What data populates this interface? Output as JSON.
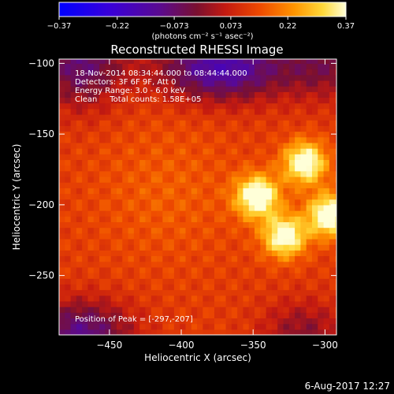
{
  "chart_data": {
    "type": "heatmap",
    "title": "Reconstructed RHESSI Image",
    "xlabel": "Heliocentric X (arcsec)",
    "ylabel": "Heliocentric Y (arcsec)",
    "xlim": [
      -485,
      -292
    ],
    "ylim": [
      -292,
      -97
    ],
    "x_ticks": [
      -450,
      -400,
      -350,
      -300
    ],
    "x_tick_labels": [
      "−450",
      "−400",
      "−350",
      "−300"
    ],
    "y_ticks": [
      -100,
      -150,
      -200,
      -250
    ],
    "y_tick_labels": [
      "−100",
      "−150",
      "−200",
      "−250"
    ],
    "colorbar": {
      "range": [
        -0.37,
        0.37
      ],
      "ticks": [
        -0.37,
        -0.22,
        -0.073,
        0.073,
        0.22,
        0.37
      ],
      "tick_labels": [
        "−0.37",
        "−0.22",
        "−0.073",
        "0.073",
        "0.22",
        "0.37"
      ],
      "unit_label": "(photons cm⁻² s⁻¹ asec⁻²)"
    },
    "annotations": [
      "18-Nov-2014 08:34:44.000 to 08:44:44.000",
      "Detectors: 3F 6F 9F, Att 0",
      "Energy Range: 3.0 - 6.0 keV",
      "Clean     Total counts: 1.58E+05"
    ],
    "peak_label": "Position of Peak = [-297,-207]",
    "peaks": [
      {
        "x": -347,
        "y": -194,
        "value": 0.37
      },
      {
        "x": -314,
        "y": -170,
        "value": 0.35
      },
      {
        "x": -328,
        "y": -222,
        "value": 0.34
      },
      {
        "x": -297,
        "y": -207,
        "value": 0.37
      }
    ],
    "dark_region_center": {
      "x": -372,
      "y": -103
    },
    "grid": false
  },
  "footer_date": "6-Aug-2017 12:27"
}
